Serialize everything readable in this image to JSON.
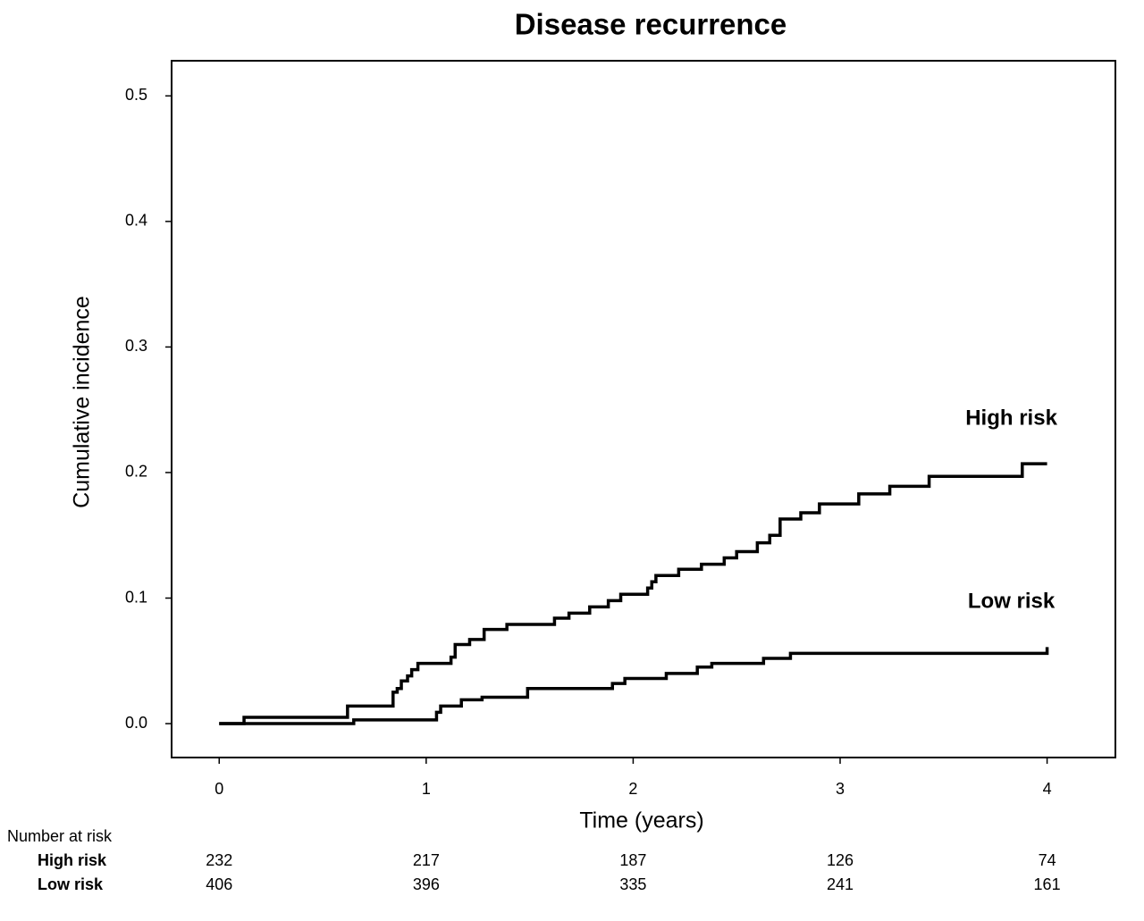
{
  "chart_data": {
    "type": "step",
    "title": "Disease recurrence",
    "x_label": "Time (years)",
    "y_label": "Cumulative incidence",
    "xlim": [
      -0.23,
      4.33
    ],
    "ylim": [
      -0.027,
      0.528
    ],
    "xticks": [
      0,
      1,
      2,
      3,
      4
    ],
    "yticks": [
      {
        "value": 0,
        "label": "0.0"
      },
      0.1,
      0.2,
      0.3,
      0.4,
      0.5
    ],
    "series": [
      {
        "name": "High risk",
        "color": "#000000",
        "x": [
          0,
          0.12,
          0.62,
          0.84,
          0.86,
          0.88,
          0.91,
          0.93,
          0.96,
          1.12,
          1.14,
          1.21,
          1.28,
          1.39,
          1.62,
          1.69,
          1.79,
          1.88,
          1.94,
          2.07,
          2.09,
          2.11,
          2.22,
          2.33,
          2.44,
          2.5,
          2.6,
          2.66,
          2.71,
          2.81,
          2.9,
          3.09,
          3.24,
          3.43,
          3.88,
          4.0
        ],
        "values": [
          0,
          0.005,
          0.014,
          0.025,
          0.028,
          0.034,
          0.038,
          0.043,
          0.048,
          0.053,
          0.063,
          0.067,
          0.075,
          0.079,
          0.084,
          0.088,
          0.093,
          0.098,
          0.103,
          0.108,
          0.113,
          0.118,
          0.123,
          0.127,
          0.132,
          0.137,
          0.144,
          0.15,
          0.163,
          0.168,
          0.175,
          0.183,
          0.189,
          0.197,
          0.207,
          0.207
        ]
      },
      {
        "name": "Low risk",
        "color": "#000000",
        "x": [
          0,
          0.65,
          1.05,
          1.07,
          1.17,
          1.27,
          1.49,
          1.9,
          1.96,
          2.16,
          2.31,
          2.38,
          2.63,
          2.76,
          4.0,
          4.0
        ],
        "values": [
          0,
          0.003,
          0.009,
          0.014,
          0.019,
          0.021,
          0.028,
          0.032,
          0.036,
          0.04,
          0.045,
          0.048,
          0.052,
          0.056,
          0.056,
          0.061
        ]
      }
    ],
    "risk_table": {
      "title": "Number at risk",
      "rows": [
        {
          "name": "High risk",
          "values": [
            232,
            217,
            187,
            126,
            74
          ]
        },
        {
          "name": "Low risk",
          "values": [
            406,
            396,
            335,
            241,
            161
          ]
        }
      ]
    }
  }
}
